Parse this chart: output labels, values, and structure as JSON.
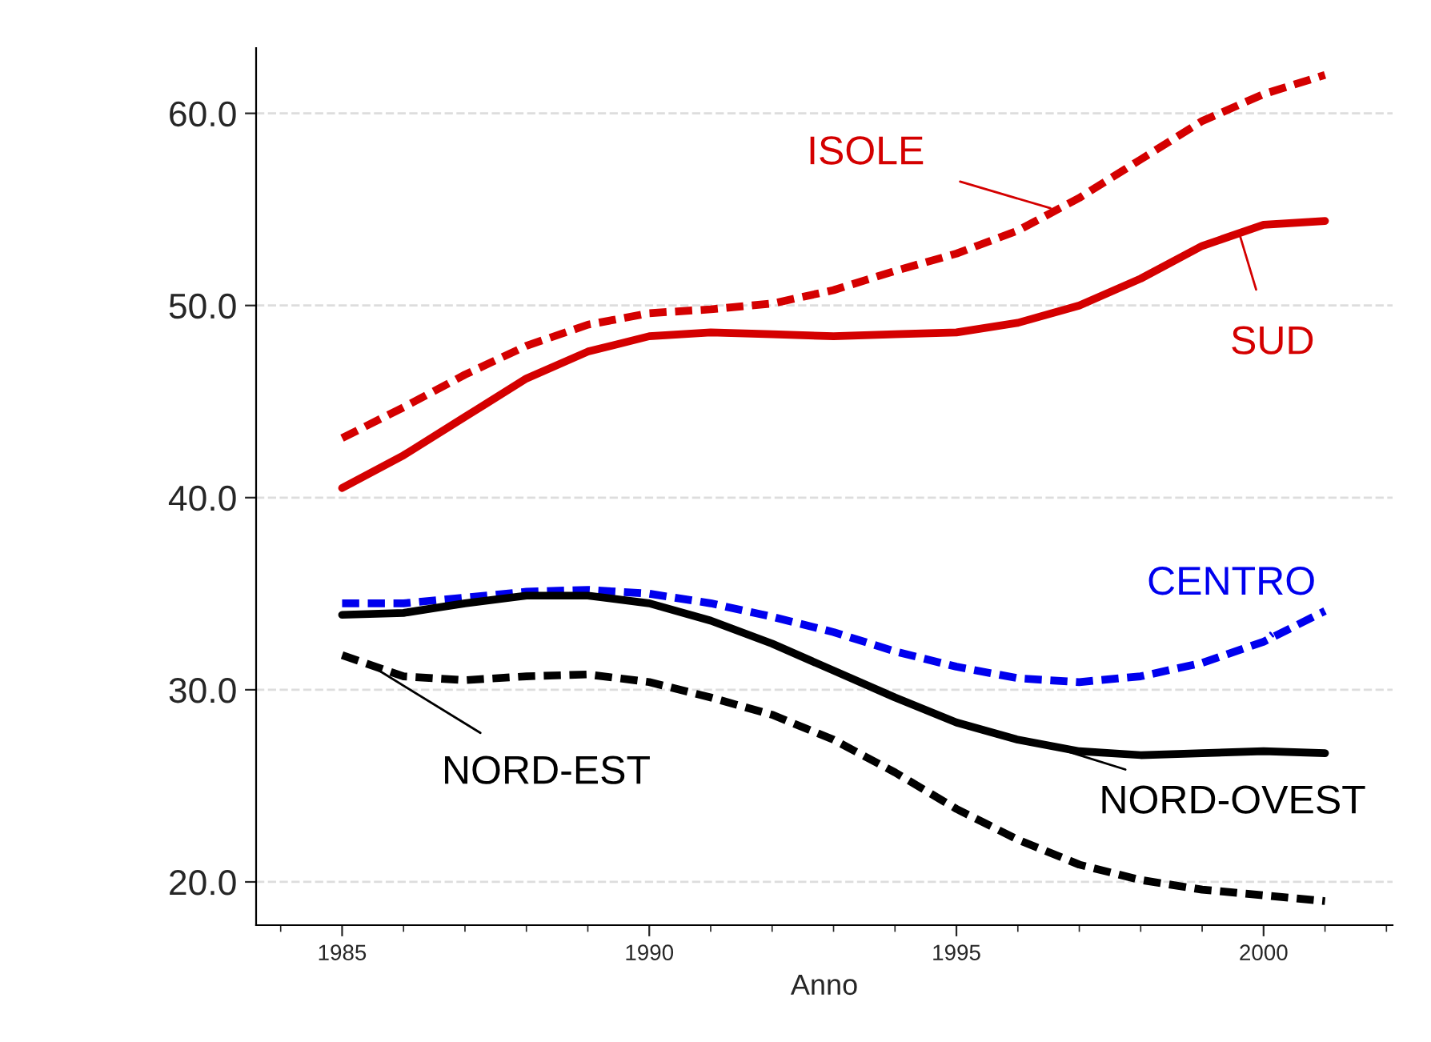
{
  "chart_data": {
    "type": "line",
    "xlabel": "Anno",
    "x": [
      1985,
      1986,
      1987,
      1988,
      1989,
      1990,
      1991,
      1992,
      1993,
      1994,
      1995,
      1996,
      1997,
      1998,
      1999,
      2000,
      2001
    ],
    "series": [
      {
        "color": "#d40000",
        "line_style": "dashed",
        "values": [
          43.1,
          44.7,
          46.4,
          47.9,
          49.0,
          49.6,
          49.8,
          50.1,
          50.8,
          51.8,
          52.7,
          53.9,
          55.6,
          57.6,
          59.6,
          61.0,
          62.0
        ]
      },
      {
        "color": "#d40000",
        "line_style": "solid",
        "values": [
          40.5,
          42.2,
          44.2,
          46.2,
          47.6,
          48.4,
          48.6,
          48.5,
          48.4,
          48.5,
          48.6,
          49.1,
          50.0,
          51.4,
          53.1,
          54.2,
          54.4
        ]
      },
      {
        "color": "#0000ee",
        "line_style": "dashed",
        "values": [
          34.5,
          34.5,
          34.8,
          35.1,
          35.2,
          35.0,
          34.5,
          33.8,
          33.0,
          32.0,
          31.2,
          30.6,
          30.4,
          30.7,
          31.4,
          32.5,
          34.1
        ]
      },
      {
        "color": "#000000",
        "line_style": "solid",
        "values": [
          33.9,
          34.0,
          34.5,
          34.9,
          34.9,
          34.5,
          33.6,
          32.4,
          31.0,
          29.6,
          28.3,
          27.4,
          26.8,
          26.6,
          26.7,
          26.8,
          26.7
        ]
      },
      {
        "color": "#000000",
        "line_style": "dashed",
        "values": [
          31.8,
          30.7,
          30.5,
          30.7,
          30.8,
          30.4,
          29.6,
          28.7,
          27.4,
          25.7,
          23.8,
          22.2,
          20.9,
          20.1,
          19.6,
          19.3,
          19.0
        ]
      }
    ],
    "annotations": [
      {
        "text": "ISOLE",
        "x": 1996.6,
        "y": 55.0
      },
      {
        "text": "SUD",
        "x": 1999.6,
        "y": 53.8
      },
      {
        "text": "CENTRO",
        "x": 2000.2,
        "y": 32.6
      },
      {
        "text": "NORD-EST",
        "x": 1985.5,
        "y": 31.2
      },
      {
        "text": "NORD-OVEST",
        "x": 1996.6,
        "y": 27.0
      }
    ],
    "xlim": [
      1983.6,
      2002.1
    ],
    "ylim": [
      17.75,
      63.4
    ],
    "xticks": [
      1985,
      1990,
      1995,
      2000
    ],
    "yticks": [
      {
        "value": 20,
        "label": "20.0"
      },
      {
        "value": 30,
        "label": "30.0"
      },
      {
        "value": 40,
        "label": "40.0"
      },
      {
        "value": 50,
        "label": "50.0"
      },
      {
        "value": 60,
        "label": "60.0"
      }
    ],
    "grid": "y",
    "legend": false,
    "marker": "none"
  }
}
